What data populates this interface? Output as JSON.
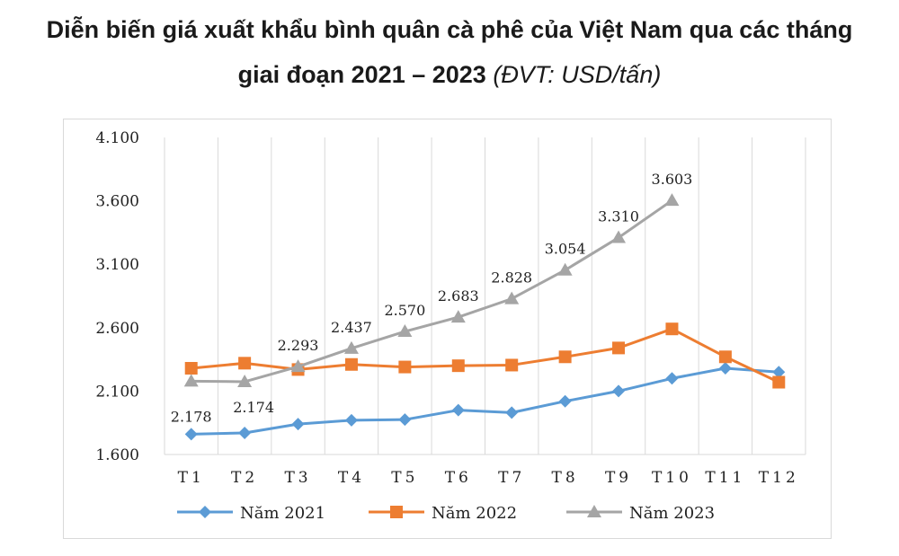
{
  "title": {
    "line1": "Diễn biến giá xuất khẩu bình quân cà phê của Việt Nam qua các tháng",
    "line2_main": "giai đoạn 2021 – 2023 ",
    "line2_unit": "(ĐVT: USD/tấn)"
  },
  "chart_data": {
    "type": "line",
    "title": "Diễn biến giá xuất khẩu bình quân cà phê của Việt Nam qua các tháng giai đoạn 2021 – 2023 (ĐVT: USD/tấn)",
    "categories": [
      "T1",
      "T2",
      "T3",
      "T4",
      "T5",
      "T6",
      "T7",
      "T8",
      "T9",
      "T10",
      "T11",
      "T12"
    ],
    "ylim": [
      1600,
      4100
    ],
    "yticks": [
      1600,
      2100,
      2600,
      3100,
      3600,
      4100
    ],
    "ytick_labels": [
      "1.600",
      "2.100",
      "2.600",
      "3.100",
      "3.600",
      "4.100"
    ],
    "grid": "vertical",
    "legend_position": "bottom",
    "series": [
      {
        "name": "Năm 2021",
        "color": "#5B9BD5",
        "marker": "diamond",
        "values": [
          1760,
          1770,
          1840,
          1870,
          1875,
          1950,
          1930,
          2020,
          2100,
          2200,
          2280,
          2250
        ]
      },
      {
        "name": "Năm 2022",
        "color": "#ED7D31",
        "marker": "square",
        "values": [
          2280,
          2320,
          2270,
          2310,
          2290,
          2300,
          2305,
          2370,
          2440,
          2590,
          2370,
          2170
        ]
      },
      {
        "name": "Năm 2023",
        "color": "#A5A5A5",
        "marker": "triangle",
        "values": [
          2178,
          2174,
          2293,
          2437,
          2570,
          2683,
          2828,
          3054,
          3310,
          3603,
          null,
          null
        ],
        "data_labels": [
          "2.178",
          "2.174",
          "2.293",
          "2.437",
          "2.570",
          "2.683",
          "2.828",
          "3.054",
          "3.310",
          "3.603",
          "",
          ""
        ]
      }
    ]
  }
}
